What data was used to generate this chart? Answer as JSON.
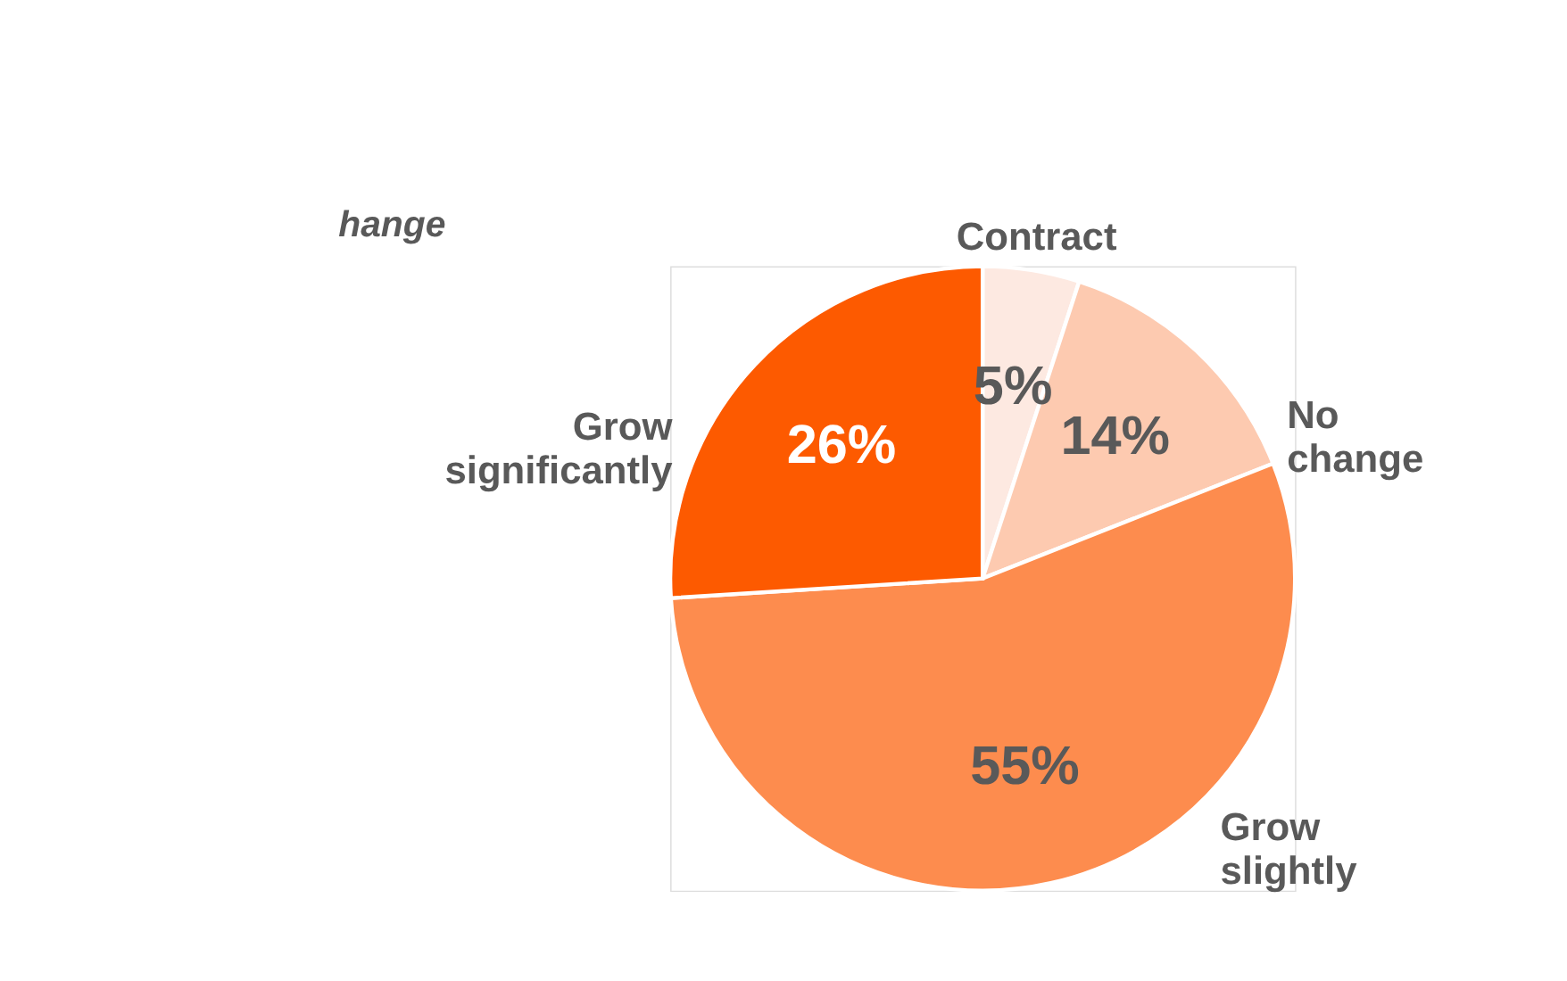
{
  "chart_data": {
    "type": "pie",
    "title": "hange",
    "categories": [
      "Contract",
      "No change",
      "Grow slightly",
      "Grow significantly"
    ],
    "values": [
      5,
      14,
      55,
      26
    ],
    "value_labels": [
      "5%",
      "14%",
      "55%",
      "26%"
    ],
    "colors": [
      "#fde9e1",
      "#fdcab0",
      "#fd8c4e",
      "#fd5a00"
    ]
  }
}
